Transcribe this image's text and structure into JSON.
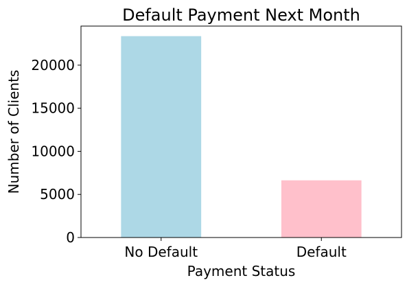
{
  "chart_data": {
    "type": "bar",
    "title": "Default Payment Next Month",
    "xlabel": "Payment Status",
    "ylabel": "Number of Clients",
    "categories": [
      "No Default",
      "Default"
    ],
    "values": [
      23364,
      6636
    ],
    "colors": [
      "#add8e6",
      "#ffc0cb"
    ],
    "ylim": [
      0,
      24532
    ],
    "yticks": [
      0,
      5000,
      10000,
      15000,
      20000
    ],
    "grid": false,
    "legend": "none"
  }
}
